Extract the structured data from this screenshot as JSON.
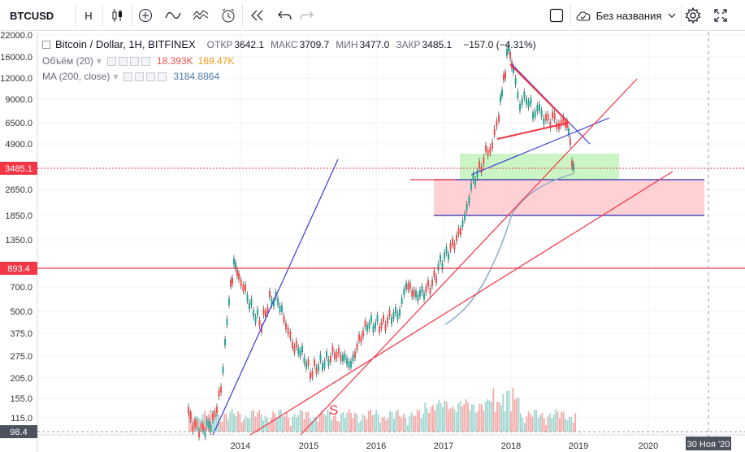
{
  "toolbar": {
    "symbol": "BTCUSD",
    "interval": "H",
    "layout_name": "Без названия"
  },
  "legend": {
    "title": "Bitcoin / Dollar, 1H, BITFINEX",
    "open_label": "ОТКР",
    "open": "3642.1",
    "high_label": "МАКС",
    "high": "3709.7",
    "low_label": "МИН",
    "low": "3477.0",
    "close_label": "ЗАКР",
    "close": "3485.1",
    "change": "−157.0 (−4.31%)",
    "volume_label": "Объём (20)",
    "volume_v1": "18.393K",
    "volume_v2": "169.47K",
    "ma_label": "MA (200, close)",
    "ma_value": "3184.8864"
  },
  "price_axis": {
    "ticks": [
      "22000.0",
      "16000.0",
      "12000.0",
      "9000.0",
      "6500.0",
      "4900.0",
      "3485.1",
      "2650.0",
      "1850.0",
      "1350.0",
      "893.4",
      "700.0",
      "500.0",
      "375.0",
      "275.0",
      "205.0",
      "155.0",
      "115.0",
      "98.4"
    ],
    "current_price": "3485.1",
    "level_price": "893.4",
    "bottom_price": "98.4"
  },
  "time_axis": {
    "ticks": [
      "2014",
      "2015",
      "2016",
      "2017",
      "2018",
      "2019",
      "2020"
    ],
    "cursor_label": "30 Ноя '20"
  },
  "annotation": {
    "text": "S"
  },
  "colors": {
    "up": "#26a69a",
    "down": "#ef5350",
    "red_line": "#f23645",
    "blue_line": "#3b3bd6",
    "ma": "#8aa8c8",
    "green_zone": "#b9f2b0",
    "red_zone": "#ffc1c6"
  }
}
